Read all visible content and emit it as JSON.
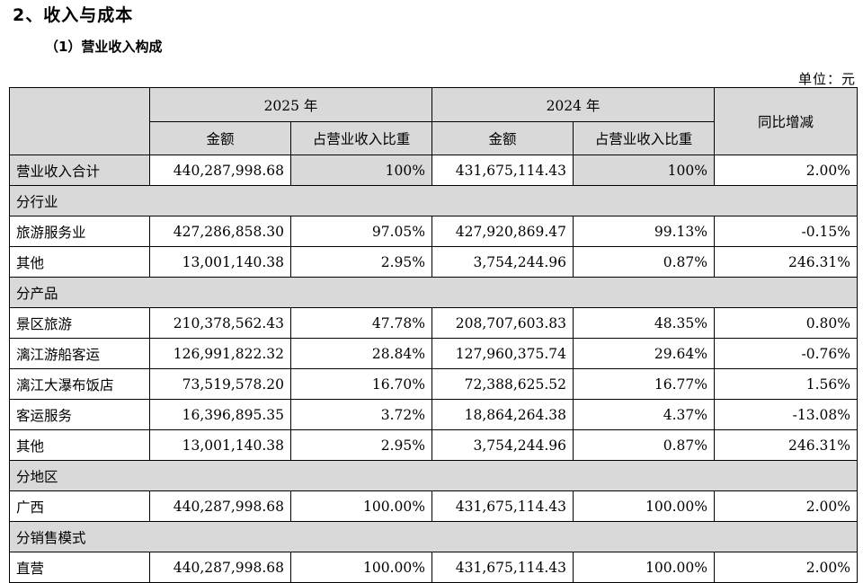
{
  "section_title": "2、收入与成本",
  "sub_title": "（1）营业收入构成",
  "unit": "单位：元",
  "headers": {
    "year_2025": "2025 年",
    "year_2024": "2024 年",
    "amount": "金额",
    "share": "占营业收入比重",
    "yoy": "同比增减"
  },
  "total": {
    "label": "营业收入合计",
    "amt_2025": "440,287,998.68",
    "pct_2025": "100%",
    "amt_2024": "431,675,114.43",
    "pct_2024": "100%",
    "yoy": "2.00%"
  },
  "groups": [
    {
      "title": "分行业",
      "rows": [
        {
          "label": "旅游服务业",
          "amt_2025": "427,286,858.30",
          "pct_2025": "97.05%",
          "amt_2024": "427,920,869.47",
          "pct_2024": "99.13%",
          "yoy": "-0.15%"
        },
        {
          "label": "其他",
          "amt_2025": "13,001,140.38",
          "pct_2025": "2.95%",
          "amt_2024": "3,754,244.96",
          "pct_2024": "0.87%",
          "yoy": "246.31%"
        }
      ]
    },
    {
      "title": "分产品",
      "rows": [
        {
          "label": "景区旅游",
          "amt_2025": "210,378,562.43",
          "pct_2025": "47.78%",
          "amt_2024": "208,707,603.83",
          "pct_2024": "48.35%",
          "yoy": "0.80%"
        },
        {
          "label": "漓江游船客运",
          "amt_2025": "126,991,822.32",
          "pct_2025": "28.84%",
          "amt_2024": "127,960,375.74",
          "pct_2024": "29.64%",
          "yoy": "-0.76%"
        },
        {
          "label": "漓江大瀑布饭店",
          "amt_2025": "73,519,578.20",
          "pct_2025": "16.70%",
          "amt_2024": "72,388,625.52",
          "pct_2024": "16.77%",
          "yoy": "1.56%"
        },
        {
          "label": "客运服务",
          "amt_2025": "16,396,895.35",
          "pct_2025": "3.72%",
          "amt_2024": "18,864,264.38",
          "pct_2024": "4.37%",
          "yoy": "-13.08%"
        },
        {
          "label": "其他",
          "amt_2025": "13,001,140.38",
          "pct_2025": "2.95%",
          "amt_2024": "3,754,244.96",
          "pct_2024": "0.87%",
          "yoy": "246.31%"
        }
      ]
    },
    {
      "title": "分地区",
      "rows": [
        {
          "label": "广西",
          "amt_2025": "440,287,998.68",
          "pct_2025": "100.00%",
          "amt_2024": "431,675,114.43",
          "pct_2024": "100.00%",
          "yoy": "2.00%"
        }
      ]
    },
    {
      "title": "分销售模式",
      "rows": [
        {
          "label": "直营",
          "amt_2025": "440,287,998.68",
          "pct_2025": "100.00%",
          "amt_2024": "431,675,114.43",
          "pct_2024": "100.00%",
          "yoy": "2.00%"
        }
      ]
    }
  ]
}
